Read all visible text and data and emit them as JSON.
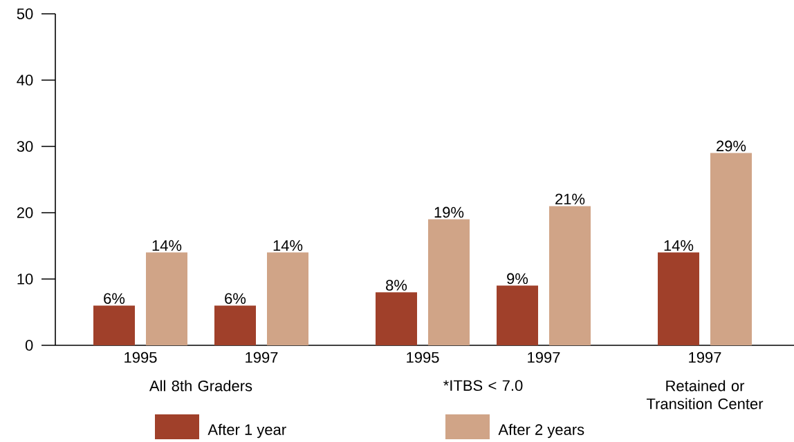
{
  "chart_data": {
    "type": "bar",
    "categories": [
      "1995",
      "1997",
      "1995",
      "1997",
      "1997"
    ],
    "series": [
      {
        "name": "After 1 year",
        "color": "#a0402a",
        "values": [
          6,
          6,
          8,
          9,
          14
        ],
        "value_labels": [
          "6%",
          "6%",
          "8%",
          "9%",
          "14%"
        ]
      },
      {
        "name": "After 2 years",
        "color": "#d0a487",
        "values": [
          14,
          14,
          19,
          21,
          29
        ],
        "value_labels": [
          "14%",
          "14%",
          "19%",
          "21%",
          "29%"
        ]
      }
    ],
    "annotations": [
      "All 8th Graders",
      "*ITBS < 7.0",
      "Retained or Transition Center"
    ],
    "ylim": [
      0,
      50
    ],
    "yticks": [
      0,
      10,
      20,
      30,
      40,
      50
    ],
    "legend": "bottom"
  }
}
